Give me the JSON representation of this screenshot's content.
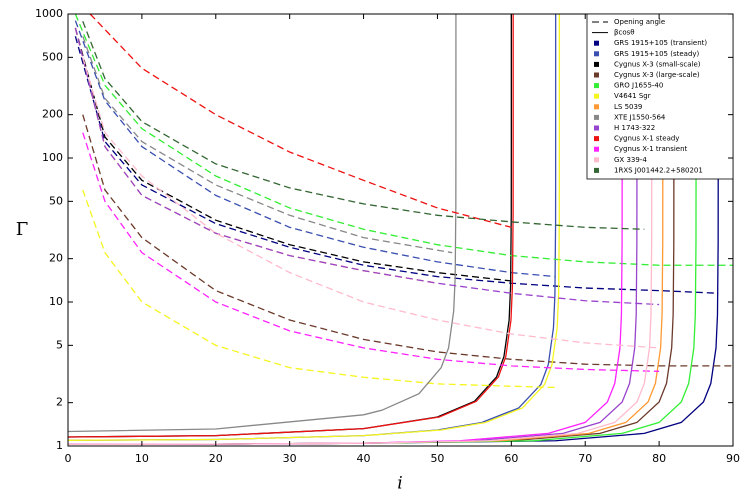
{
  "chart_data": {
    "type": "line",
    "x_label": "i",
    "y_label": "Γ",
    "y_scale": "log",
    "xlim": [
      0,
      90
    ],
    "ylim": [
      1,
      1000
    ],
    "xticks": [
      0,
      10,
      20,
      30,
      40,
      50,
      60,
      70,
      80,
      90
    ],
    "yticks": [
      1,
      2,
      5,
      10,
      20,
      50,
      100,
      200,
      500,
      1000
    ],
    "legend_position": "upper right",
    "styles": [
      {
        "name": "Opening angle",
        "dash": "dashed"
      },
      {
        "name": "βcosθ",
        "dash": "solid"
      }
    ],
    "sources": [
      {
        "name": "GRS 1915+105 (transient)",
        "color": "#000080",
        "opening_angle": {
          "x": [
            1,
            5,
            10,
            20,
            30,
            40,
            50,
            60,
            70,
            80,
            88
          ],
          "values": [
            700,
            130,
            65,
            35,
            24,
            18,
            15,
            13.5,
            12.5,
            12,
            11.5
          ]
        },
        "beta_cos": {
          "x": [
            0,
            20,
            40,
            66,
            78,
            83,
            86,
            87,
            87.7,
            87.9,
            87.99,
            87.999,
            87.9999,
            87.99999,
            87.999999
          ],
          "values": [
            1.026,
            1.03,
            1.046,
            1.087,
            1.223,
            1.458,
            2.02,
            2.72,
            4.8,
            8.15,
            25.7,
            81.3,
            257,
            813,
            2571
          ]
        }
      },
      {
        "name": "GRS 1915+105 (steady)",
        "color": "#3a4fb0",
        "opening_angle": {
          "x": [
            1,
            5,
            10,
            20,
            30,
            40,
            50,
            60,
            66
          ],
          "values": [
            900,
            250,
            120,
            55,
            33,
            24,
            19,
            16,
            15
          ]
        },
        "beta_cos": {
          "x": [
            0,
            20,
            40,
            50,
            56,
            61,
            64,
            65,
            65.7,
            65.9,
            65.99,
            65.999,
            65.9999,
            65.99999
          ],
          "values": [
            1.095,
            1.109,
            1.18,
            1.291,
            1.457,
            1.838,
            2.678,
            3.678,
            6.6,
            11.3,
            35.7,
            112.9,
            357,
            1129
          ]
        }
      },
      {
        "name": "Cygnus X-3 (small-scale)",
        "color": "#000000",
        "opening_angle": {
          "x": [
            1,
            5,
            10,
            20,
            30,
            40,
            50,
            60
          ],
          "values": [
            800,
            140,
            70,
            37,
            25,
            19,
            16,
            14
          ]
        },
        "beta_cos": {
          "x": [
            0,
            20,
            40,
            50,
            55,
            58,
            59,
            59.7,
            59.9,
            59.99,
            59.999,
            59.9999,
            59.99999
          ],
          "values": [
            1.155,
            1.181,
            1.32,
            1.591,
            2.041,
            3.02,
            4.18,
            7.49,
            12.9,
            40.7,
            128.6,
            407,
            1286
          ]
        }
      },
      {
        "name": "Cygnus X-3 (large-scale)",
        "color": "#6b3a2a",
        "opening_angle": {
          "x": [
            2,
            5,
            10,
            20,
            30,
            40,
            50,
            60,
            70,
            80,
            90
          ],
          "values": [
            200,
            60,
            28,
            12,
            7.5,
            5.5,
            4.5,
            4,
            3.7,
            3.6,
            3.6
          ]
        },
        "beta_cos": {
          "x": [
            0,
            20,
            40,
            60,
            72,
            77,
            80,
            81,
            81.7,
            81.9,
            81.99,
            81.999,
            81.9999,
            81.99999,
            81.999999
          ],
          "values": [
            1.026,
            1.03,
            1.046,
            1.087,
            1.223,
            1.458,
            2.02,
            2.72,
            4.8,
            8.15,
            25.7,
            81.3,
            257,
            813,
            2571
          ]
        }
      },
      {
        "name": "GRO J1655-40",
        "color": "#33ee33",
        "opening_angle": {
          "x": [
            1,
            5,
            10,
            20,
            30,
            40,
            50,
            60,
            70,
            80,
            90
          ],
          "values": [
            1000,
            320,
            160,
            75,
            45,
            32,
            25,
            21,
            19,
            18,
            18
          ]
        },
        "beta_cos": {
          "x": [
            0,
            20,
            40,
            63,
            75,
            80,
            83,
            84,
            84.7,
            84.9,
            84.99,
            84.999,
            84.9999,
            84.99999,
            84.999999
          ],
          "values": [
            1.026,
            1.03,
            1.046,
            1.087,
            1.223,
            1.458,
            2.02,
            2.72,
            4.8,
            8.15,
            25.7,
            81.3,
            257,
            813,
            2571
          ]
        }
      },
      {
        "name": "V4641 Sgr",
        "color": "#f5f520",
        "opening_angle": {
          "x": [
            2,
            5,
            10,
            20,
            30,
            40,
            50,
            60,
            66
          ],
          "values": [
            60,
            22,
            10,
            5,
            3.5,
            3,
            2.7,
            2.6,
            2.55
          ]
        },
        "beta_cos": {
          "x": [
            0,
            20,
            40,
            50.5,
            56.5,
            61.5,
            64.5,
            65.5,
            66.2,
            66.4,
            66.49,
            66.499,
            66.4999,
            66.49999
          ],
          "values": [
            1.095,
            1.109,
            1.18,
            1.291,
            1.457,
            1.838,
            2.678,
            3.678,
            6.6,
            11.3,
            35.7,
            112.9,
            357,
            1129
          ]
        }
      },
      {
        "name": "LS 5039",
        "color": "#ff9933",
        "opening_angle": {
          "x": [
            1,
            5,
            10,
            20,
            30,
            40,
            50
          ],
          "values": [
            800,
            120,
            55,
            30,
            21,
            16.5,
            13.5
          ]
        },
        "beta_cos": {
          "x": [
            0,
            20,
            40,
            58.5,
            70.5,
            75.5,
            78.5,
            79.5,
            80.2,
            80.4,
            80.49,
            80.499,
            80.4999,
            80.49999,
            80.499999
          ],
          "values": [
            1.026,
            1.03,
            1.046,
            1.087,
            1.223,
            1.458,
            2.02,
            2.72,
            4.8,
            8.15,
            25.7,
            81.3,
            257,
            813,
            2571
          ]
        }
      },
      {
        "name": "XTE J1550-564",
        "color": "#888888",
        "opening_angle": {
          "x": [
            2,
            5,
            10,
            20,
            30,
            40,
            52
          ],
          "values": [
            700,
            260,
            130,
            65,
            40,
            28,
            22
          ]
        },
        "beta_cos": {
          "x": [
            0,
            20,
            40,
            42.5,
            47.5,
            50.5,
            51.5,
            52.2,
            52.4,
            52.49,
            52.499,
            52.4999,
            52.49999
          ],
          "values": [
            1.261,
            1.313,
            1.647,
            1.773,
            2.307,
            3.5,
            4.79,
            8.67,
            14.9,
            46.9,
            148,
            469,
            1484
          ]
        }
      },
      {
        "name": "H 1743-322",
        "color": "#9944cc",
        "opening_angle": {
          "x": [
            1,
            5,
            10,
            20,
            30,
            40,
            50,
            60,
            70,
            80
          ],
          "values": [
            800,
            120,
            55,
            30,
            21,
            16.5,
            13.5,
            11.5,
            10.2,
            9.6
          ]
        },
        "beta_cos": {
          "x": [
            0,
            20,
            40,
            55,
            67,
            72,
            75,
            76,
            76.7,
            76.9,
            76.99,
            76.999,
            76.9999,
            76.99999,
            76.999999
          ],
          "values": [
            1.026,
            1.03,
            1.046,
            1.087,
            1.223,
            1.458,
            2.02,
            2.72,
            4.8,
            8.15,
            25.7,
            81.3,
            257,
            813,
            2571
          ]
        }
      },
      {
        "name": "Cygnus X-1 steady",
        "color": "#ee1111",
        "opening_angle": {
          "x": [
            3,
            10,
            20,
            30,
            40,
            50,
            60
          ],
          "values": [
            1000,
            420,
            200,
            110,
            70,
            45,
            33
          ]
        },
        "beta_cos": {
          "x": [
            0,
            20,
            40,
            50.25,
            55.25,
            58.25,
            59.25,
            59.95,
            60.15,
            60.24,
            60.249,
            60.2499,
            60.24999
          ],
          "values": [
            1.155,
            1.181,
            1.32,
            1.591,
            2.041,
            3.02,
            4.18,
            7.49,
            12.9,
            40.7,
            128.6,
            407,
            1286
          ]
        }
      },
      {
        "name": "Cygnus X-1 transient",
        "color": "#ff22ff",
        "opening_angle": {
          "x": [
            2,
            5,
            10,
            20,
            30,
            40,
            50,
            60,
            70,
            80
          ],
          "values": [
            150,
            50,
            22,
            10,
            6.3,
            4.8,
            4,
            3.6,
            3.4,
            3.3
          ]
        },
        "beta_cos": {
          "x": [
            0,
            20,
            40,
            53,
            65,
            70,
            73,
            74,
            74.7,
            74.9,
            74.99,
            74.999,
            74.9999,
            74.99999,
            74.999999
          ],
          "values": [
            1.026,
            1.03,
            1.046,
            1.087,
            1.223,
            1.458,
            2.02,
            2.72,
            4.8,
            8.15,
            25.7,
            81.3,
            257,
            813,
            2571
          ]
        }
      },
      {
        "name": "GX 339-4",
        "color": "#ffbbcc",
        "opening_angle": {
          "x": [
            2,
            5,
            10,
            20,
            30,
            40,
            50,
            60,
            70,
            80
          ],
          "values": [
            500,
            150,
            75,
            30,
            16,
            10,
            7.5,
            6,
            5.2,
            4.8
          ]
        },
        "beta_cos": {
          "x": [
            0,
            20,
            40,
            57,
            69,
            74,
            77,
            78,
            78.7,
            78.9,
            78.99,
            78.999,
            78.9999,
            78.99999,
            78.999999
          ],
          "values": [
            1.026,
            1.03,
            1.046,
            1.087,
            1.223,
            1.458,
            2.02,
            2.72,
            4.8,
            8.15,
            25.7,
            81.3,
            257,
            813,
            2571
          ]
        }
      },
      {
        "name": "1RXS J001442.2+580201",
        "color": "#336633",
        "opening_angle": {
          "x": [
            2,
            5,
            10,
            20,
            30,
            40,
            50,
            60,
            70,
            78
          ],
          "values": [
            890,
            356,
            179,
            91,
            62,
            48,
            40,
            36,
            33,
            32
          ]
        }
      }
    ]
  }
}
